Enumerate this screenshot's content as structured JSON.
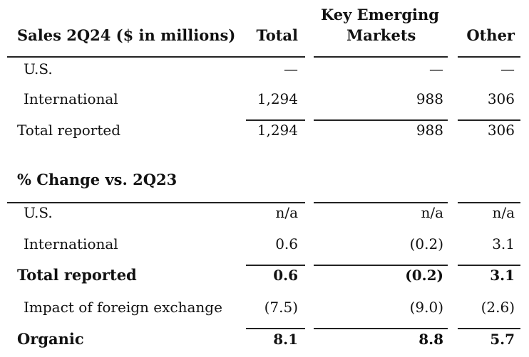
{
  "header": {
    "title": "Sales 2Q24 ($ in millions)",
    "col_total": "Total",
    "col_kem_line1": "Key Emerging",
    "col_kem_line2": "Markets",
    "col_other": "Other"
  },
  "sales_rows": [
    {
      "label": "U.S.",
      "total": "—",
      "kem": "—",
      "other": "—"
    },
    {
      "label": "International",
      "total": "1,294",
      "kem": "988",
      "other": "306"
    },
    {
      "label": "Total reported",
      "total": "1,294",
      "kem": "988",
      "other": "306"
    }
  ],
  "change_section": {
    "title": "% Change vs. 2Q23"
  },
  "change_rows": [
    {
      "label": "U.S.",
      "total": "n/a",
      "kem": "n/a",
      "other": "n/a"
    },
    {
      "label": "International",
      "total": "0.6",
      "kem": "(0.2)",
      "other": "3.1"
    },
    {
      "label": "Total reported",
      "total": "0.6",
      "kem": "(0.2)",
      "other": "3.1"
    },
    {
      "label": "Impact of foreign exchange",
      "total": "(7.5)",
      "kem": "(9.0)",
      "other": "(2.6)"
    },
    {
      "label": "Organic",
      "total": "8.1",
      "kem": "8.8",
      "other": "5.7"
    }
  ]
}
